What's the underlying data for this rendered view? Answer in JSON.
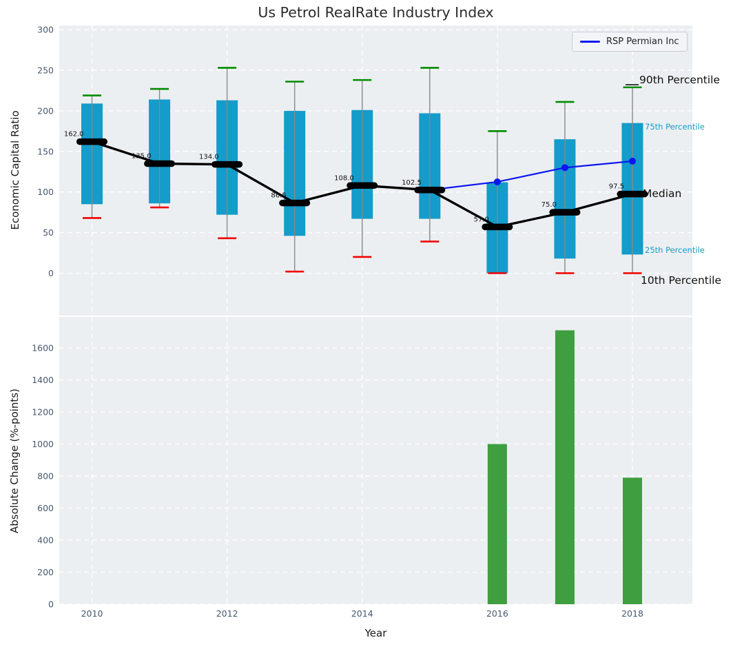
{
  "figure": {
    "title": "Us Petrol RealRate Industry Index"
  },
  "legend": {
    "label": "RSP Permian Inc"
  },
  "annotations": {
    "p90": "90th Percentile",
    "p75": "75th Percentile",
    "median": "Median",
    "p25": "25th Percentile",
    "p10": "10th Percentile"
  },
  "colors": {
    "box": "#149cca",
    "cap_high": "#008c00",
    "cap_low": "#f10000",
    "median_line": "#000000",
    "company_line": "#0b16f0",
    "bar": "#3f9e3f",
    "axes_bg": "#eceff1",
    "grid": "#ffffff",
    "tick_label": "#47586d",
    "whisker": "#888888",
    "cyan_text": "#149cca",
    "median_value_label": "#111111"
  },
  "chart_data": [
    {
      "type": "box",
      "title": "Us Petrol RealRate Industry Index",
      "xlabel": "Year",
      "ylabel": "Economic Capital Ratio",
      "ylim": [
        -52,
        305
      ],
      "yticks": [
        0,
        50,
        100,
        150,
        200,
        250,
        300
      ],
      "xticks": [
        2010,
        2012,
        2014,
        2016,
        2018
      ],
      "grid": true,
      "legend_position": "upper right",
      "categories": [
        2010,
        2011,
        2012,
        2013,
        2014,
        2015,
        2016,
        2017,
        2018
      ],
      "series": [
        {
          "name": "90th Percentile",
          "values": [
            219,
            227,
            253,
            236,
            238,
            253,
            175,
            211,
            229
          ]
        },
        {
          "name": "75th Percentile",
          "values": [
            209,
            214,
            213,
            200,
            201,
            197,
            112,
            165,
            185
          ]
        },
        {
          "name": "Median",
          "values": [
            162.0,
            135.0,
            134.0,
            86.5,
            108.0,
            102.5,
            57.0,
            75.0,
            97.5
          ]
        },
        {
          "name": "25th Percentile",
          "values": [
            85,
            86,
            72,
            46,
            67,
            67,
            0,
            18,
            23
          ]
        },
        {
          "name": "10th Percentile",
          "values": [
            68,
            81,
            43,
            2,
            20,
            39,
            0,
            0,
            0
          ]
        },
        {
          "name": "RSP Permian Inc",
          "x": [
            2015,
            2016,
            2017,
            2018
          ],
          "values": [
            102.5,
            112.5,
            130,
            138
          ]
        }
      ],
      "median_value_labels": [
        "162.0",
        "135.0",
        "134.0",
        "86.5",
        "108.0",
        "102.5",
        "57.0",
        "75.0",
        "97.5"
      ]
    },
    {
      "type": "bar",
      "xlabel": "Year",
      "ylabel": "Absolute Change (%-points)",
      "ylim": [
        0,
        1793
      ],
      "yticks": [
        0,
        200,
        400,
        600,
        800,
        1000,
        1200,
        1400,
        1600
      ],
      "xticks": [
        2010,
        2012,
        2014,
        2016,
        2018
      ],
      "grid": true,
      "categories": [
        2016,
        2017,
        2018
      ],
      "values": [
        1000,
        1710,
        790
      ]
    }
  ]
}
